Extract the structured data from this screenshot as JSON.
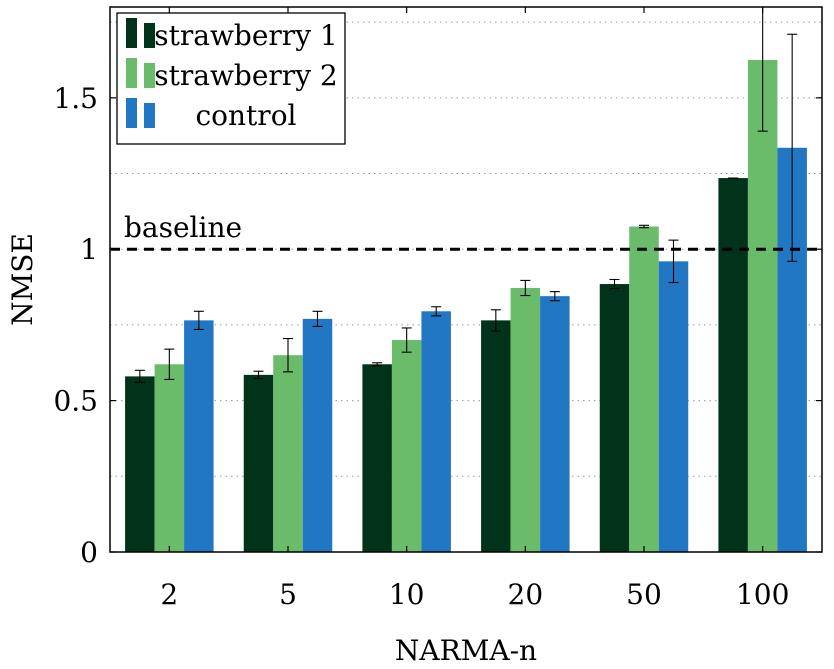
{
  "chart_data": {
    "type": "bar",
    "categories": [
      "2",
      "5",
      "10",
      "20",
      "50",
      "100"
    ],
    "series": [
      {
        "name": "strawberry 1",
        "color": "#003319",
        "values": [
          0.58,
          0.585,
          0.62,
          0.765,
          0.885,
          1.235
        ],
        "errors": [
          0.02,
          0.012,
          0.005,
          0.035,
          0.015,
          0.0
        ]
      },
      {
        "name": "strawberry 2",
        "color": "#6ABB6A",
        "values": [
          0.62,
          0.65,
          0.7,
          0.872,
          1.075,
          1.625
        ],
        "errors": [
          0.05,
          0.055,
          0.04,
          0.025,
          0.004,
          0.235
        ]
      },
      {
        "name": "control",
        "color": "#2277C4",
        "values": [
          0.765,
          0.77,
          0.795,
          0.845,
          0.96,
          1.335
        ],
        "errors": [
          0.03,
          0.025,
          0.015,
          0.015,
          0.07,
          0.375
        ]
      }
    ],
    "xlabel": "NARMA-n",
    "ylabel": "NMSE",
    "ylim": [
      0,
      1.8
    ],
    "yticks": [
      0,
      0.5,
      1,
      1.5
    ],
    "ytick_labels": [
      "0",
      "0.5",
      "1",
      "1.5"
    ],
    "grid": "horizontal dotted",
    "legend_position": "top-left",
    "baseline": {
      "value": 1,
      "label": "baseline"
    }
  }
}
